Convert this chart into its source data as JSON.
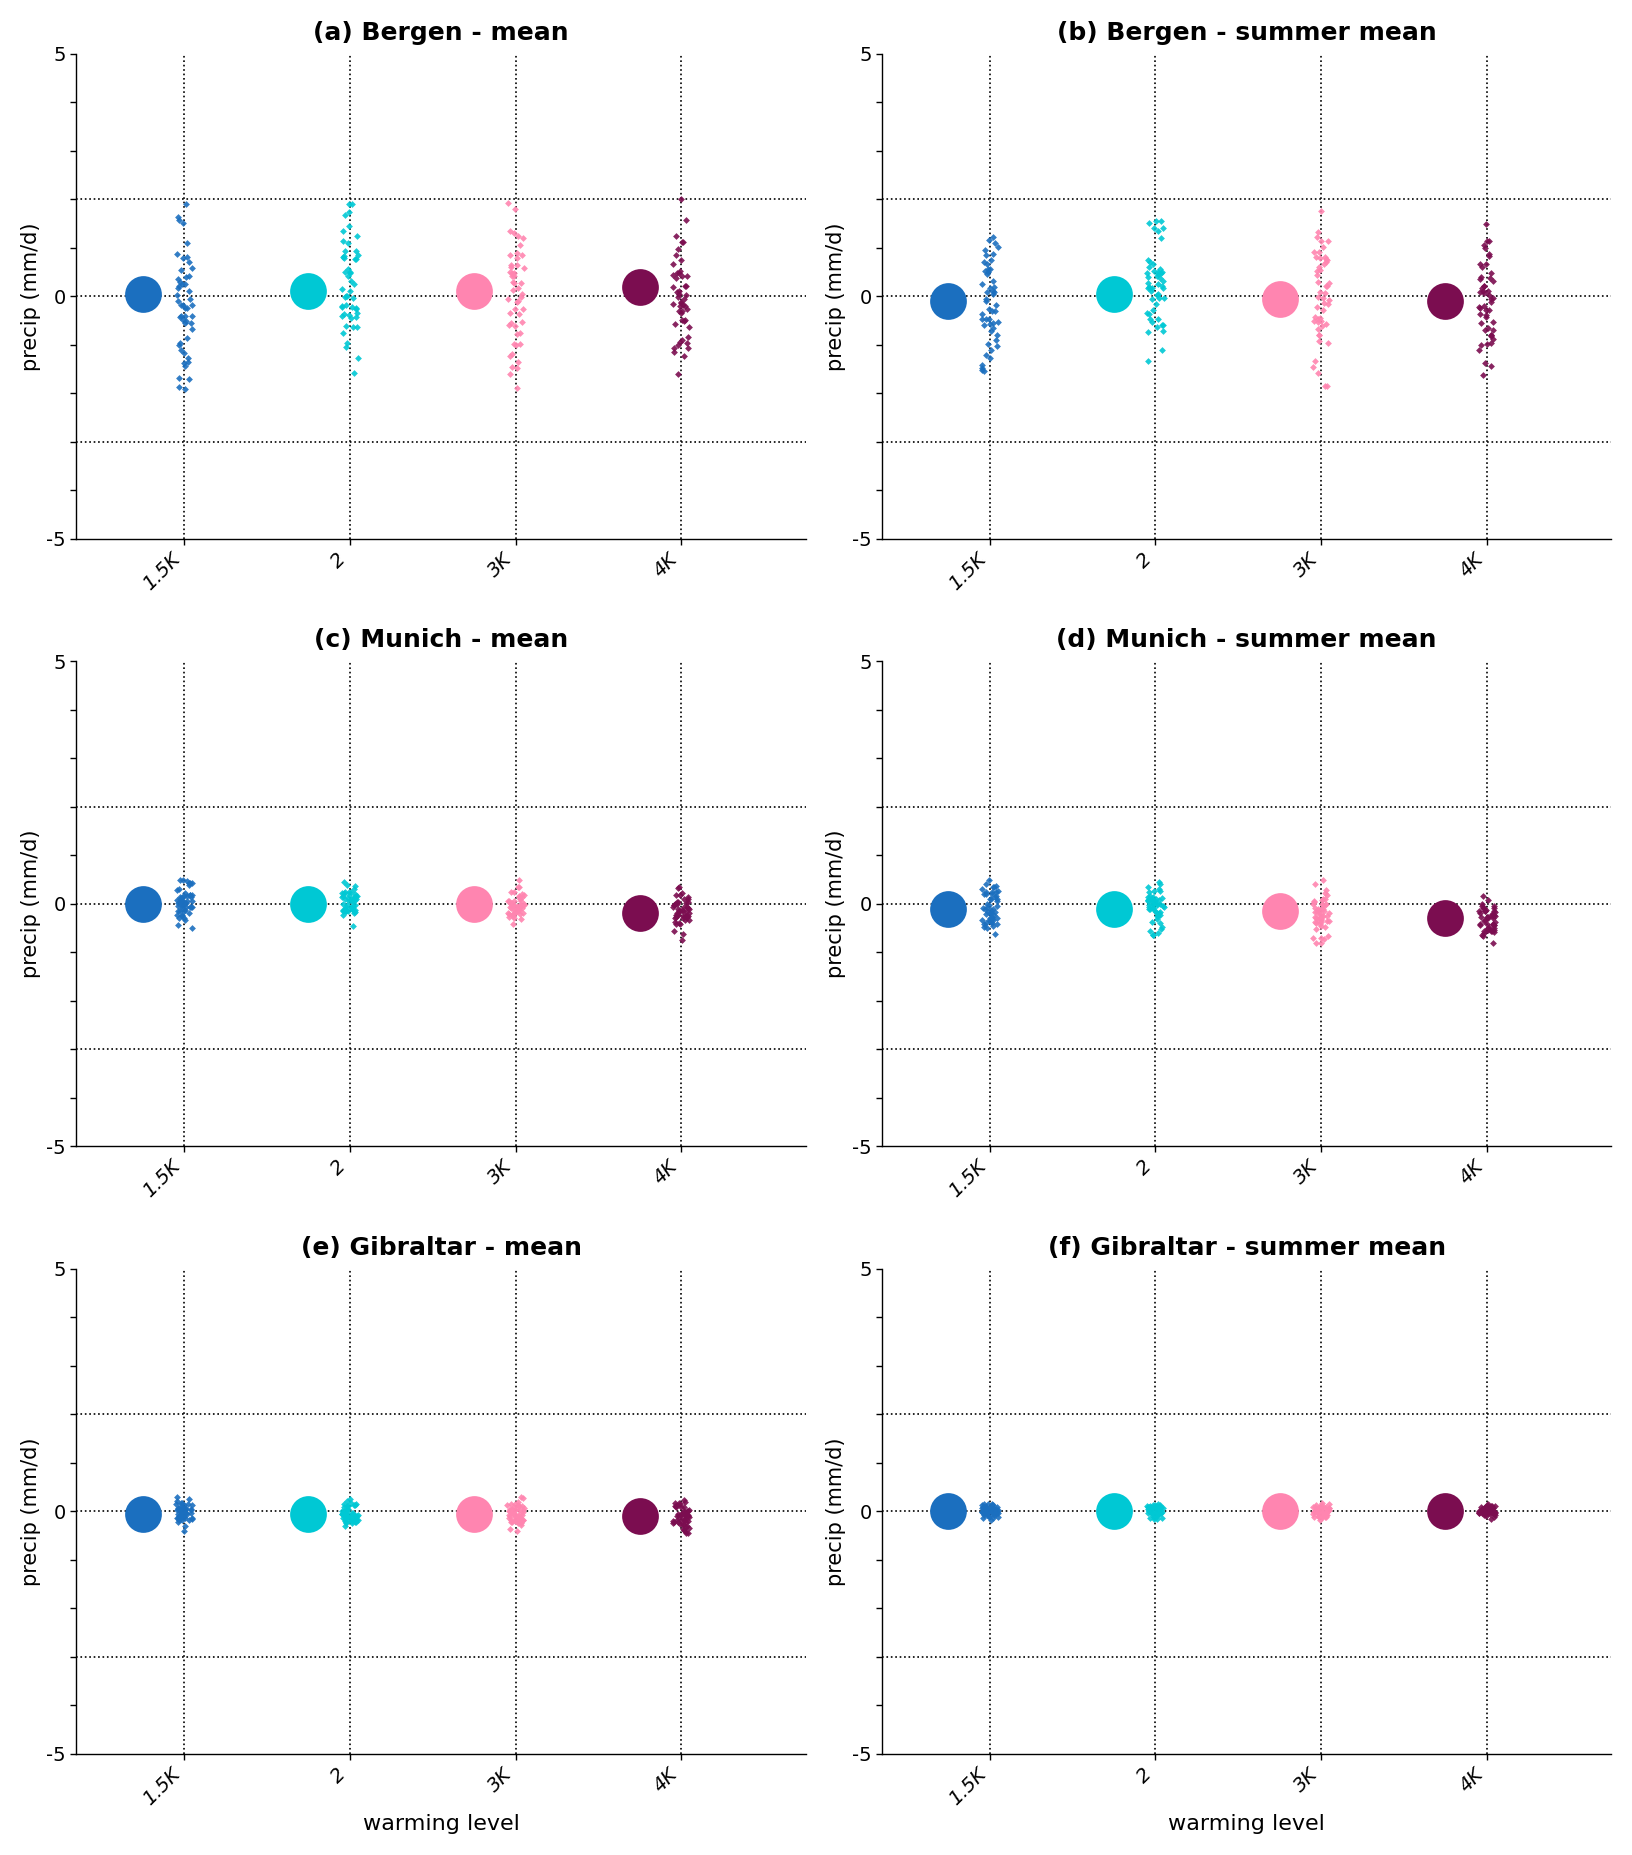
{
  "titles": [
    "(a) Bergen - mean",
    "(b) Bergen - summer mean",
    "(c) Munich - mean",
    "(d) Munich - summer mean",
    "(e) Gibraltar - mean",
    "(f) Gibraltar - summer mean"
  ],
  "xlabel": "warming level",
  "ylabel": "precip (mm/d)",
  "x_labels": [
    "1.5K",
    "2",
    "3K",
    "4K"
  ],
  "x_positions": [
    1,
    2,
    3,
    4
  ],
  "ylim": [
    -5,
    5
  ],
  "hlines": [
    -3,
    0,
    2
  ],
  "colors": [
    "#1B6FBF",
    "#00C8D4",
    "#FF85B0",
    "#7B0D50"
  ],
  "title_fontsize": 18,
  "label_fontsize": 15,
  "tick_fontsize": 14
}
